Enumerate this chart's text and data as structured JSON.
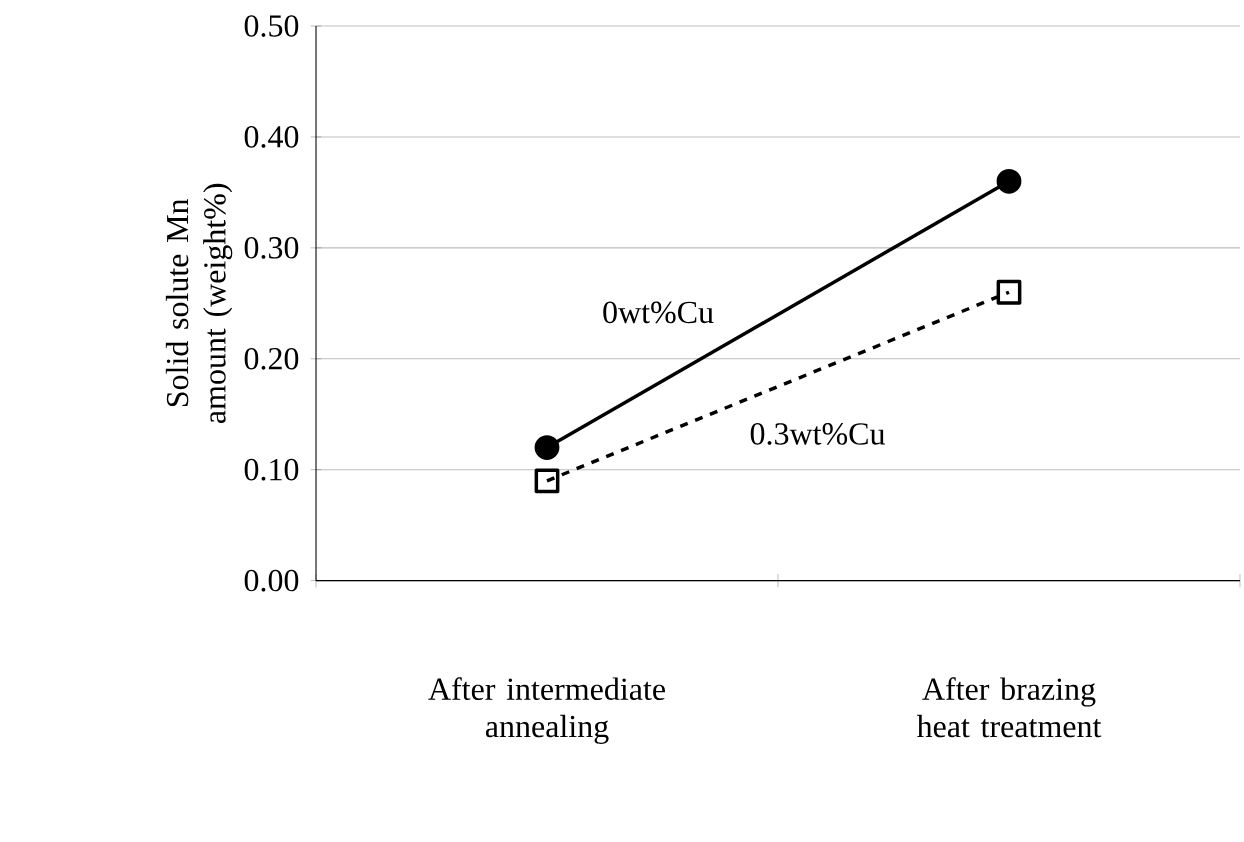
{
  "chart_data": {
    "type": "line",
    "ylabel": "Solid solute Mn amount (weight%)",
    "categories": [
      "After intermediate annealing",
      "After brazing heat treatment"
    ],
    "series": [
      {
        "name": "0wt%Cu",
        "color": "#000000",
        "values": [
          0.12,
          0.36
        ],
        "marker": "circle",
        "line_style": "solid"
      },
      {
        "name": "0.3wt%Cu",
        "color": "#000000",
        "values": [
          0.09,
          0.26
        ],
        "marker": "square",
        "line_style": "dashed"
      }
    ],
    "ylim": [
      0,
      0.5
    ],
    "yticks": [
      {
        "value": 0,
        "label": "0.00"
      },
      {
        "value": 0.1,
        "label": "0.10"
      },
      {
        "value": 0.2,
        "label": "0.20"
      },
      {
        "value": 0.3,
        "label": "0.30"
      },
      {
        "value": 0.4,
        "label": "0.40"
      },
      {
        "value": 0.5,
        "label": "0.50"
      }
    ],
    "grid": "y",
    "legend": false
  }
}
